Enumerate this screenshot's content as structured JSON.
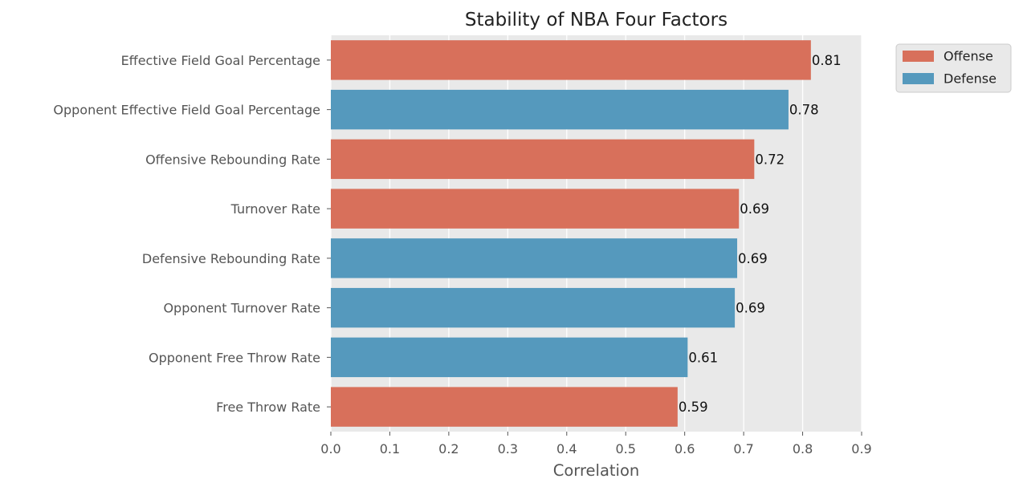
{
  "chart_data": {
    "type": "bar",
    "orientation": "horizontal",
    "title": "Stability of NBA Four Factors",
    "xlabel": "Correlation",
    "ylabel": "",
    "xlim": [
      0,
      0.9
    ],
    "xticks": [
      "0.0",
      "0.1",
      "0.2",
      "0.3",
      "0.4",
      "0.5",
      "0.6",
      "0.7",
      "0.8",
      "0.9"
    ],
    "grid": true,
    "legend_position": "outside top-right",
    "categories": [
      "Effective Field Goal Percentage",
      "Opponent Effective Field Goal Percentage",
      "Offensive Rebounding Rate",
      "Turnover Rate",
      "Defensive Rebounding Rate",
      "Opponent Turnover Rate",
      "Opponent Free Throw Rate",
      "Free Throw Rate"
    ],
    "values": [
      0.814,
      0.776,
      0.718,
      0.692,
      0.689,
      0.685,
      0.605,
      0.588
    ],
    "labels": [
      "0.81",
      "0.78",
      "0.72",
      "0.69",
      "0.69",
      "0.69",
      "0.61",
      "0.59"
    ],
    "groups": [
      "Offense",
      "Defense",
      "Offense",
      "Offense",
      "Defense",
      "Defense",
      "Defense",
      "Offense"
    ],
    "legend": [
      {
        "name": "Offense",
        "color": "#d8705b"
      },
      {
        "name": "Defense",
        "color": "#5599bd"
      }
    ],
    "background_color": "#e9e9e9",
    "grid_color": "#ffffff"
  }
}
